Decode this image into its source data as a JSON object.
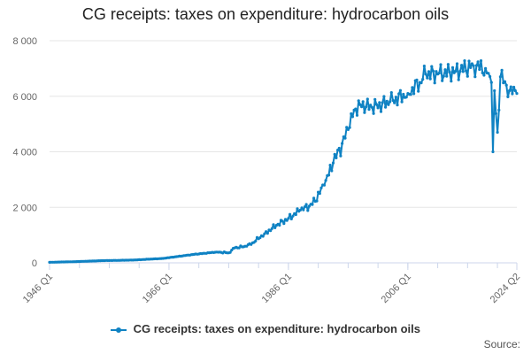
{
  "colors": {
    "series": "#0F82C3",
    "grid": "#e6e6e6",
    "axis": "#ccd6eb",
    "text": "#666666"
  },
  "source_label": "Source:",
  "chart_data": {
    "type": "line",
    "title": "CG receipts: taxes on expenditure: hydrocarbon oils",
    "xlabel": "",
    "ylabel": "",
    "x_start": "1946 Q1",
    "x_end": "2024 Q2",
    "x_tick_labels": [
      "1946 Q1",
      "1966 Q1",
      "1986 Q1",
      "2006 Q1",
      "2024 Q2"
    ],
    "y_tick_labels": [
      "0",
      "2 000",
      "4 000",
      "6 000",
      "8 000"
    ],
    "ylim": [
      0,
      8000
    ],
    "grid": true,
    "legend_position": "bottom",
    "series": [
      {
        "name": "CG receipts: taxes on expenditure: hydrocarbon oils",
        "anchor_points": [
          [
            "1946 Q1",
            20
          ],
          [
            "1950 Q1",
            40
          ],
          [
            "1955 Q1",
            80
          ],
          [
            "1960 Q1",
            100
          ],
          [
            "1965 Q1",
            160
          ],
          [
            "1970 Q1",
            300
          ],
          [
            "1974 Q1",
            390
          ],
          [
            "1976 Q1",
            360
          ],
          [
            "1977 Q1",
            540
          ],
          [
            "1979 Q1",
            600
          ],
          [
            "1980 Q1",
            720
          ],
          [
            "1982 Q1",
            1050
          ],
          [
            "1984 Q1",
            1350
          ],
          [
            "1986 Q1",
            1600
          ],
          [
            "1988 Q1",
            1900
          ],
          [
            "1990 Q1",
            2100
          ],
          [
            "1992 Q1",
            2800
          ],
          [
            "1993 Q3",
            3600
          ],
          [
            "1995 Q1",
            4300
          ],
          [
            "1996 Q1",
            4800
          ],
          [
            "1997 Q1",
            5500
          ],
          [
            "1998 Q1",
            5700
          ],
          [
            "2000 Q1",
            5600
          ],
          [
            "2003 Q1",
            5800
          ],
          [
            "2006 Q1",
            6100
          ],
          [
            "2008 Q1",
            6500
          ],
          [
            "2009 Q1",
            6800
          ],
          [
            "2011 Q1",
            6800
          ],
          [
            "2014 Q1",
            6900
          ],
          [
            "2017 Q1",
            7100
          ],
          [
            "2019 Q1",
            7000
          ],
          [
            "2020 Q1",
            6500
          ],
          [
            "2020 Q2",
            4000
          ],
          [
            "2020 Q3",
            6200
          ],
          [
            "2021 Q1",
            4700
          ],
          [
            "2021 Q3",
            6700
          ],
          [
            "2022 Q3",
            6400
          ],
          [
            "2023 Q1",
            6200
          ],
          [
            "2024 Q1",
            6200
          ],
          [
            "2024 Q2",
            6100
          ]
        ]
      }
    ]
  }
}
